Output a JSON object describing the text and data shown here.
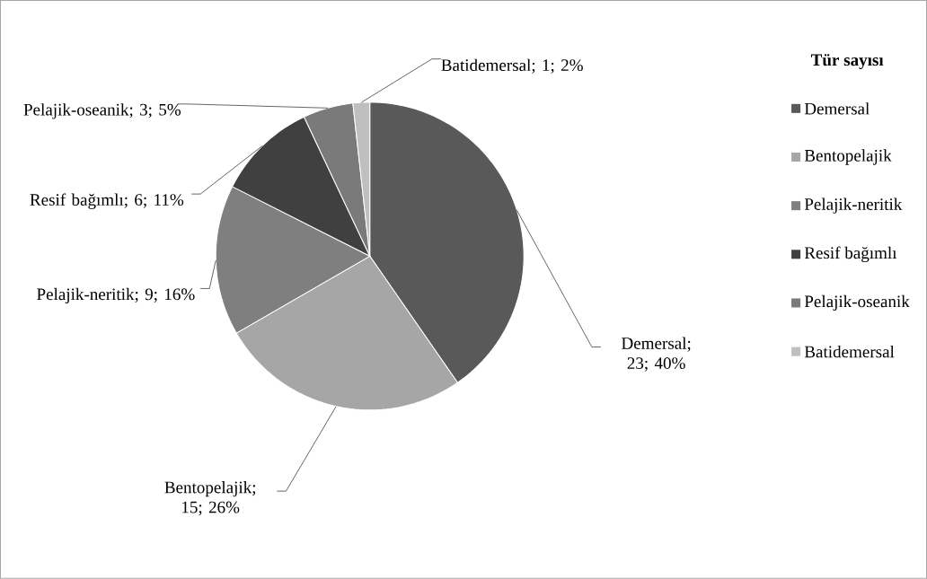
{
  "chart_data": {
    "type": "pie",
    "legend_title": "Tür sayısı",
    "legend": "right",
    "categories": [
      "Demersal",
      "Bentopelajik",
      "Pelajik-neritik",
      "Resif bağımlı",
      "Pelajik-oseanik",
      "Batidemersal"
    ],
    "values": [
      23,
      15,
      9,
      6,
      3,
      1
    ],
    "colors": [
      "#595959",
      "#a6a6a6",
      "#7f7f7f",
      "#404040",
      "#7a7a7a",
      "#bfbfbf"
    ],
    "value_labels": [
      "Demersal; 23; 40%",
      "Bentopelajik; 15; 26%",
      "Pelajik-neritik; 9; 16%",
      "Resif bağımlı; 6; 11%",
      "Pelajik-oseanik; 3; 5%",
      "Batidemersal; 1; 2%"
    ]
  }
}
